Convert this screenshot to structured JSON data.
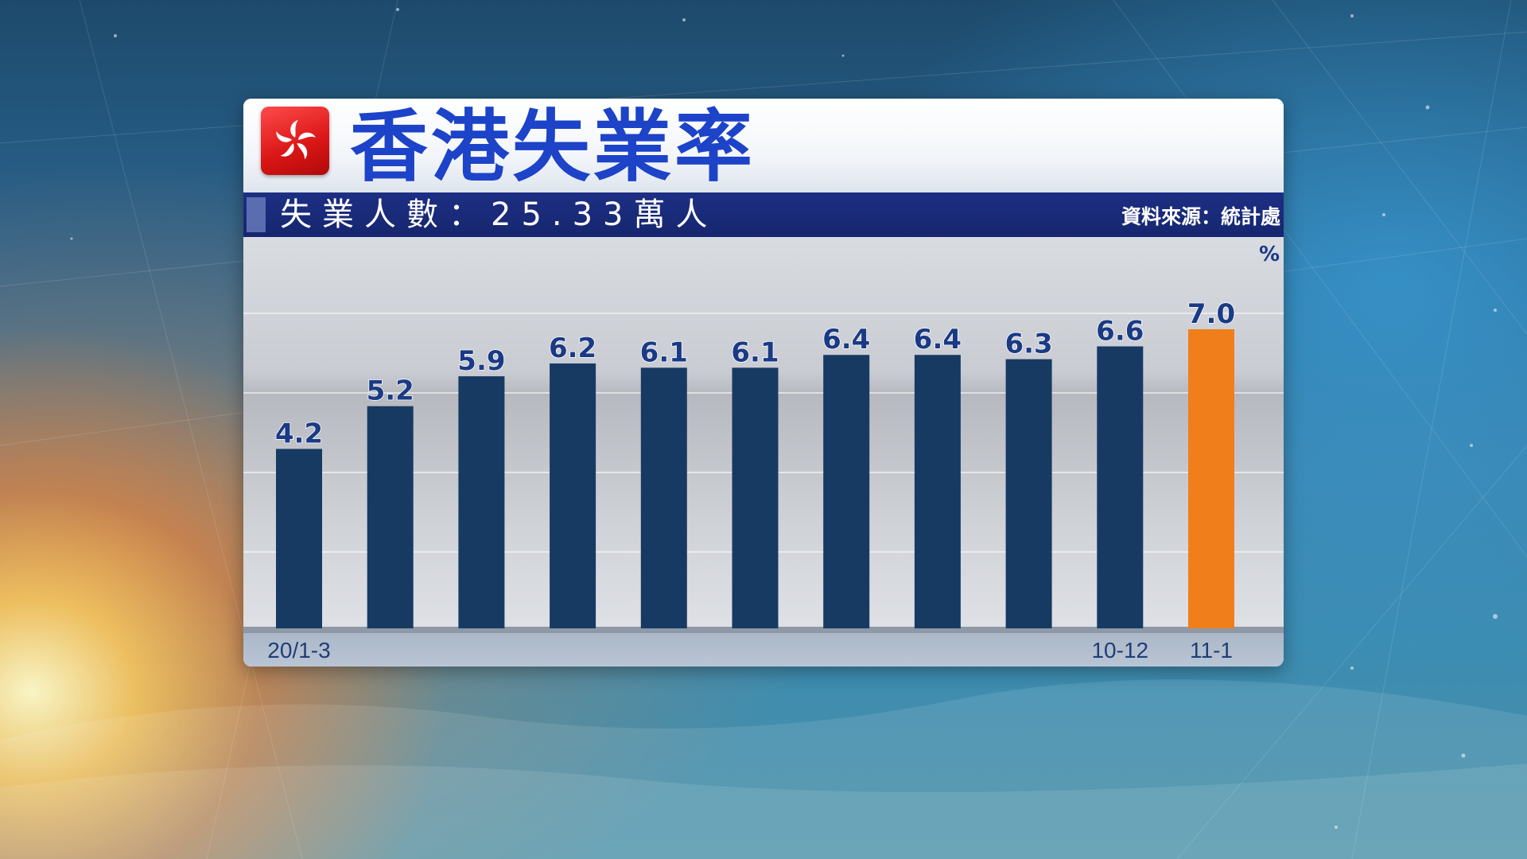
{
  "chart_data": {
    "type": "bar",
    "title": "香港失業率",
    "subtitle": "失業人數：25.33萬人",
    "source": "資料來源：統計處",
    "unit": "%",
    "categories": [
      "20/1-3",
      "",
      "",
      "",
      "",
      "",
      "",
      "",
      "",
      "10-12",
      "11-1"
    ],
    "values": [
      4.2,
      5.2,
      5.9,
      6.2,
      6.1,
      6.1,
      6.4,
      6.4,
      6.3,
      6.6,
      7.0
    ],
    "value_labels": [
      "4.2",
      "5.2",
      "5.9",
      "6.2",
      "6.1",
      "6.1",
      "6.4",
      "6.4",
      "6.3",
      "6.6",
      "7.0"
    ],
    "ylim": [
      0,
      7.0
    ],
    "grid": true,
    "colors": {
      "bar": "#173a63",
      "highlight_bar": "#f07e1a",
      "label": "#1a3a85",
      "title": "#1c43c8"
    },
    "highlight_index": 10
  },
  "header": {
    "icon": "hong-kong-flag-icon"
  }
}
